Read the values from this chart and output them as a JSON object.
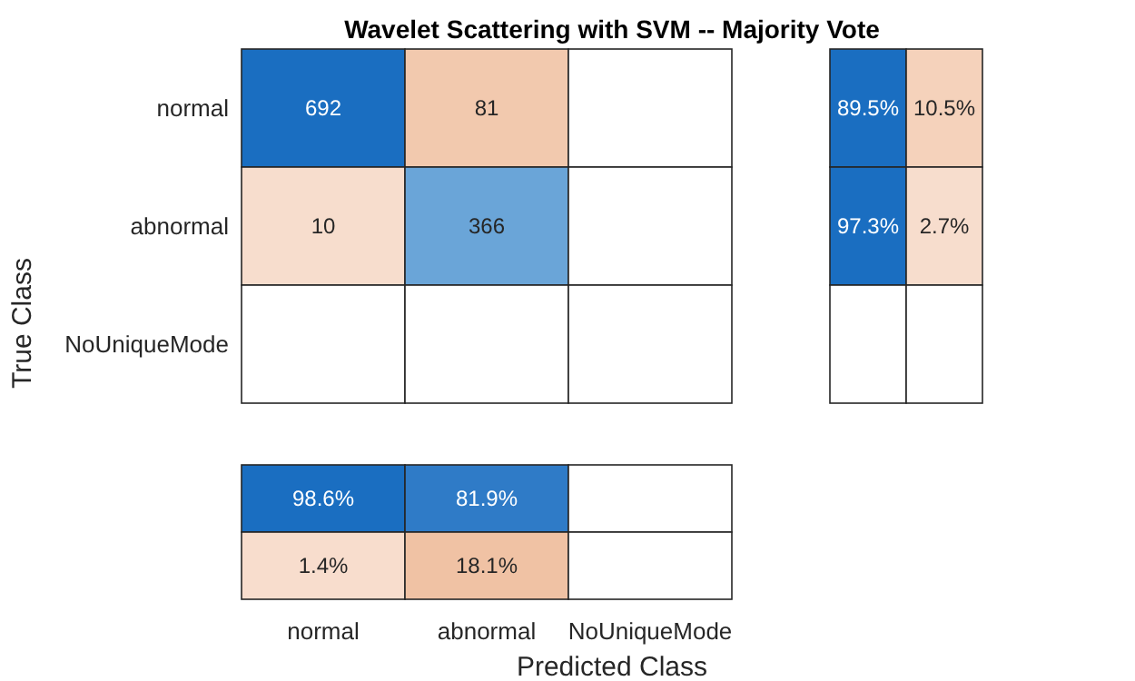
{
  "chart_data": [
    {
      "type": "heatmap",
      "title": "Wavelet Scattering with SVM -- Majority Vote",
      "ylabel": "True Class",
      "categories": [
        "normal",
        "abnormal",
        "NoUniqueMode"
      ],
      "y_categories": [
        "normal",
        "abnormal",
        "NoUniqueMode"
      ],
      "cells": [
        [
          692,
          81,
          null
        ],
        [
          10,
          366,
          null
        ],
        [
          null,
          null,
          null
        ]
      ],
      "colors": [
        [
          "#1a6ec1",
          "#f2c9ae",
          null
        ],
        [
          "#f7ddcd",
          "#6aa5d8",
          null
        ],
        [
          null,
          null,
          null
        ]
      ],
      "data_labels": true,
      "tick_labels": "y"
    },
    {
      "type": "heatmap",
      "categories": [
        null,
        null
      ],
      "y_categories": [
        "normal",
        "abnormal",
        "NoUniqueMode"
      ],
      "cells": [
        [
          89.5,
          10.5
        ],
        [
          97.3,
          2.7
        ],
        [
          null,
          null
        ]
      ],
      "cell_labels": [
        [
          "89.5%",
          "10.5%"
        ],
        [
          "97.3%",
          "2.7%"
        ],
        [
          null,
          null
        ]
      ],
      "colors": [
        [
          "#1a6ec1",
          "#f5d2bb"
        ],
        [
          "#1a6ec1",
          "#f7ddcd"
        ],
        [
          null,
          null
        ]
      ],
      "tick_labels": false
    },
    {
      "type": "heatmap",
      "xlabel": "Predicted Class",
      "categories": [
        "normal",
        "abnormal",
        "NoUniqueMode"
      ],
      "y_categories": [
        null,
        null
      ],
      "cells": [
        [
          98.6,
          81.9,
          null
        ],
        [
          1.4,
          18.1,
          null
        ]
      ],
      "cell_labels": [
        [
          "98.6%",
          "81.9%",
          null
        ],
        [
          "1.4%",
          "18.1%",
          null
        ]
      ],
      "colors": [
        [
          "#1a6ec1",
          "#2f7bc7",
          null
        ],
        [
          "#f8ddcd",
          "#f0c2a4",
          null
        ]
      ],
      "tick_labels": "x"
    }
  ]
}
